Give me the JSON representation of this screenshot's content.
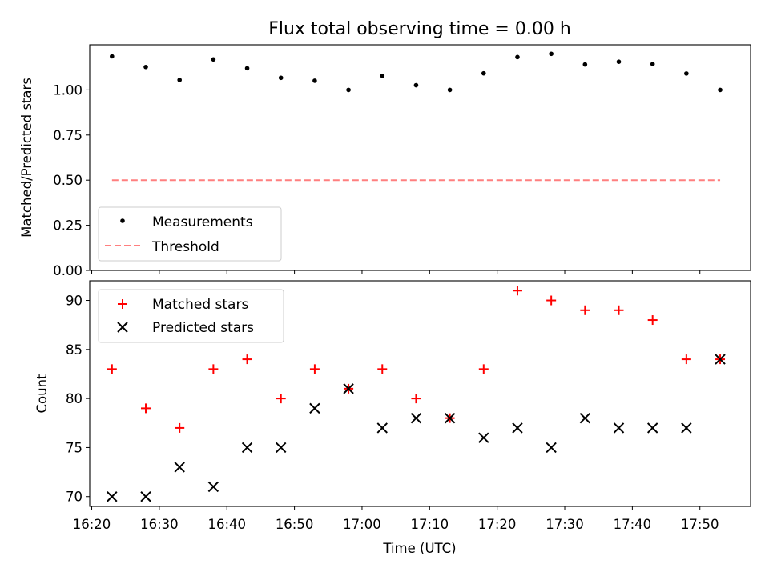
{
  "chart_data": [
    {
      "type": "scatter",
      "title": "Flux total observing time = 0.00 h",
      "ylabel": "Matched/Predicted stars",
      "xlabel": "",
      "ylim": [
        0,
        1.25
      ],
      "yticks": [
        "0.00",
        "0.25",
        "0.50",
        "0.75",
        "1.00"
      ],
      "ytick_values": [
        0,
        0.25,
        0.5,
        0.75,
        1.0
      ],
      "x_range_minutes": [
        "16:19",
        "17:58"
      ],
      "legend_position": "lower-left",
      "series": [
        {
          "name": "Measurements",
          "marker": "dot",
          "color": "#000000",
          "x": [
            "16:23",
            "16:28",
            "16:33",
            "16:38",
            "16:43",
            "16:48",
            "16:53",
            "16:58",
            "17:03",
            "17:08",
            "17:13",
            "17:18",
            "17:23",
            "17:28",
            "17:33",
            "17:38",
            "17:43",
            "17:48",
            "17:53"
          ],
          "y": [
            1.186,
            1.127,
            1.055,
            1.169,
            1.12,
            1.067,
            1.051,
            1.0,
            1.078,
            1.026,
            1.0,
            1.092,
            1.182,
            1.2,
            1.141,
            1.156,
            1.143,
            1.091,
            1.0
          ]
        },
        {
          "name": "Threshold",
          "marker": "dashed-line",
          "color": "#ff7f7f",
          "x": [
            "16:23",
            "17:53"
          ],
          "y": [
            0.5,
            0.5
          ]
        }
      ]
    },
    {
      "type": "scatter",
      "title": "",
      "ylabel": "Count",
      "xlabel": "Time (UTC)",
      "ylim": [
        69,
        92
      ],
      "yticks": [
        "70",
        "75",
        "80",
        "85",
        "90"
      ],
      "ytick_values": [
        70,
        75,
        80,
        85,
        90
      ],
      "xticks": [
        "16:20",
        "16:30",
        "16:40",
        "16:50",
        "17:00",
        "17:10",
        "17:20",
        "17:30",
        "17:40",
        "17:50"
      ],
      "legend_position": "upper-left",
      "series": [
        {
          "name": "Matched stars",
          "marker": "plus",
          "color": "#ff0000",
          "x": [
            "16:23",
            "16:28",
            "16:33",
            "16:38",
            "16:43",
            "16:48",
            "16:53",
            "16:58",
            "17:03",
            "17:08",
            "17:13",
            "17:18",
            "17:23",
            "17:28",
            "17:33",
            "17:38",
            "17:43",
            "17:48",
            "17:53"
          ],
          "y": [
            83,
            79,
            77,
            83,
            84,
            80,
            83,
            81,
            83,
            80,
            78,
            83,
            91,
            90,
            89,
            89,
            88,
            84,
            84
          ]
        },
        {
          "name": "Predicted stars",
          "marker": "x",
          "color": "#000000",
          "x": [
            "16:23",
            "16:28",
            "16:33",
            "16:38",
            "16:43",
            "16:48",
            "16:53",
            "16:58",
            "17:03",
            "17:08",
            "17:13",
            "17:18",
            "17:23",
            "17:28",
            "17:33",
            "17:38",
            "17:43",
            "17:48",
            "17:53"
          ],
          "y": [
            70,
            70,
            73,
            71,
            75,
            75,
            79,
            81,
            77,
            78,
            78,
            76,
            77,
            75,
            78,
            77,
            77,
            77,
            84
          ]
        }
      ]
    }
  ]
}
